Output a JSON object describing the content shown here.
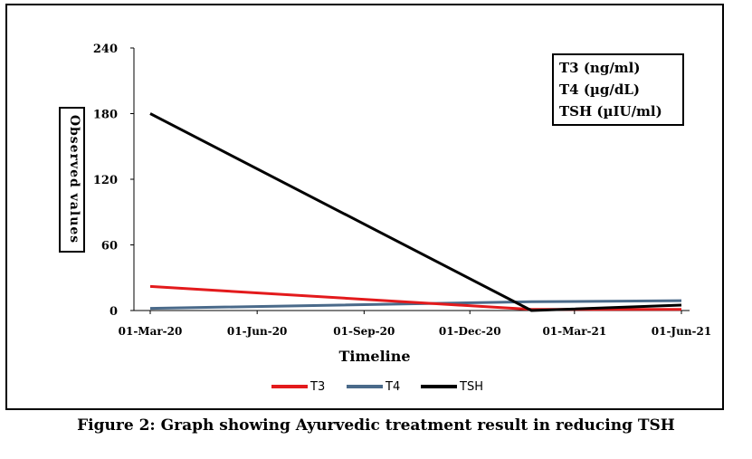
{
  "caption": "Figure 2: Graph showing Ayurvedic treatment result in reducing TSH",
  "units_box": [
    "T3 (ng/ml)",
    "T4 (µg/dL)",
    "TSH (µIU/ml)"
  ],
  "chart_data": {
    "type": "line",
    "title": "",
    "xlabel": "Timeline",
    "ylabel": "Observed values",
    "ylim": [
      0,
      240
    ],
    "yticks": [
      0,
      60,
      120,
      180,
      240
    ],
    "xticks": [
      "01-Mar-20",
      "01-Jun-20",
      "01-Sep-20",
      "01-Dec-20",
      "01-Mar-21",
      "01-Jun-21"
    ],
    "x": [
      "2020-03-01",
      "2021-01-23",
      "2021-06-01"
    ],
    "series": [
      {
        "name": "T3",
        "color": "#e31a1c",
        "values": [
          22,
          1,
          1
        ]
      },
      {
        "name": "T4",
        "color": "#4a6a8a",
        "values": [
          2,
          8,
          9
        ]
      },
      {
        "name": "TSH",
        "color": "#000000",
        "values": [
          180,
          0,
          5
        ]
      }
    ],
    "legend_position": "bottom-center",
    "grid": false
  }
}
